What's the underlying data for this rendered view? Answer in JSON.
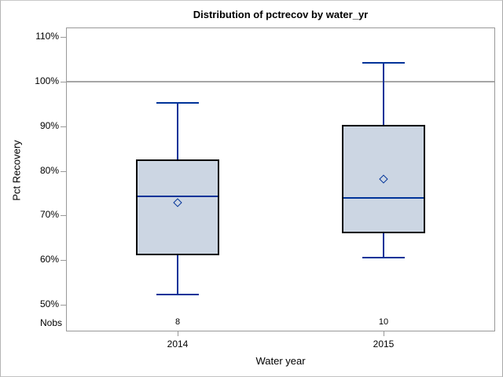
{
  "title": "Distribution of pctrecov by water_yr",
  "axes": {
    "y_label": "Pct Recovery",
    "x_label": "Water year",
    "nobs_label": "Nobs"
  },
  "colors": {
    "box_fill": "#ccd6e3",
    "box_border": "#000000",
    "line_blue": "#003399",
    "axis_gray": "#999999",
    "refline_gray": "#a6a6a6",
    "text": "#000000"
  },
  "chart_data": {
    "type": "boxplot",
    "title": "Distribution of pctrecov by water_yr",
    "xlabel": "Water year",
    "ylabel": "Pct Recovery",
    "ylim": [
      50,
      110
    ],
    "yticks": [
      50,
      60,
      70,
      80,
      90,
      100,
      110
    ],
    "ytick_labels": [
      "50%",
      "60%",
      "70%",
      "80%",
      "90%",
      "100%",
      "110%"
    ],
    "refline_y": 100,
    "grid": "off",
    "legend": "none",
    "categories": [
      "2014",
      "2015"
    ],
    "nobs_row_label": "Nobs",
    "series": [
      {
        "category": "2014",
        "nobs": "8",
        "whisker_low": 52.3,
        "q1": 61.2,
        "median": 74.3,
        "mean": 72.9,
        "q3": 82.6,
        "whisker_high": 95.3
      },
      {
        "category": "2015",
        "nobs": "10",
        "whisker_low": 60.5,
        "q1": 66.0,
        "median": 73.9,
        "mean": 78.2,
        "q3": 90.3,
        "whisker_high": 104.2
      }
    ]
  }
}
